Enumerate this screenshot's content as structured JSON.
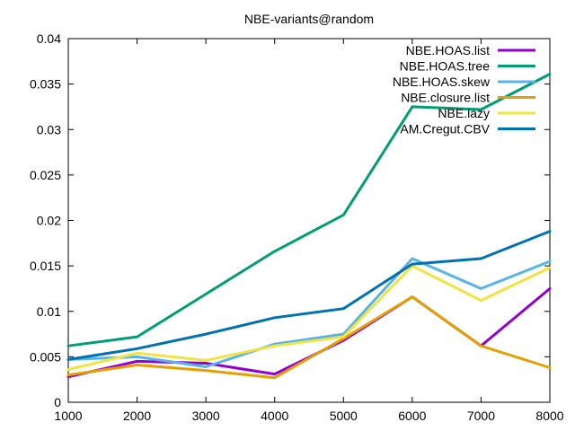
{
  "chart_data": {
    "type": "line",
    "title": "NBE-variants@random",
    "xlabel": "",
    "ylabel": "",
    "x": [
      1000,
      2000,
      3000,
      4000,
      5000,
      6000,
      7000,
      8000
    ],
    "xlim": [
      1000,
      8000
    ],
    "ylim": [
      0,
      0.04
    ],
    "x_ticks": [
      "1000",
      "2000",
      "3000",
      "4000",
      "5000",
      "6000",
      "7000",
      "8000"
    ],
    "y_ticks": [
      "0",
      "0.005",
      "0.01",
      "0.015",
      "0.02",
      "0.025",
      "0.03",
      "0.035",
      "0.04"
    ],
    "grid": false,
    "legend_position": "top-right",
    "series": [
      {
        "name": "NBE.HOAS.list",
        "color": "#9400d3",
        "values": [
          0.0028,
          0.0045,
          0.0043,
          0.0031,
          0.0068,
          0.0116,
          0.0062,
          0.0125
        ]
      },
      {
        "name": "NBE.HOAS.tree",
        "color": "#009e73",
        "values": [
          0.0062,
          0.0072,
          0.0119,
          0.0166,
          0.0206,
          0.0325,
          0.0322,
          0.0361
        ]
      },
      {
        "name": "NBE.HOAS.skew",
        "color": "#56b4e9",
        "values": [
          0.0047,
          0.005,
          0.0039,
          0.0064,
          0.0075,
          0.0158,
          0.0125,
          0.0155
        ]
      },
      {
        "name": "NBE.closure.list",
        "color": "#e69f00",
        "values": [
          0.003,
          0.0041,
          0.0035,
          0.0027,
          0.007,
          0.0116,
          0.0062,
          0.0038
        ]
      },
      {
        "name": "NBE.lazy",
        "color": "#f0e442",
        "values": [
          0.0036,
          0.0054,
          0.0046,
          0.0062,
          0.0072,
          0.015,
          0.0112,
          0.0148
        ]
      },
      {
        "name": "AM.Cregut.CBV",
        "color": "#0072b2",
        "values": [
          0.0047,
          0.0059,
          0.0075,
          0.0093,
          0.0103,
          0.0152,
          0.0158,
          0.0188
        ]
      }
    ]
  }
}
